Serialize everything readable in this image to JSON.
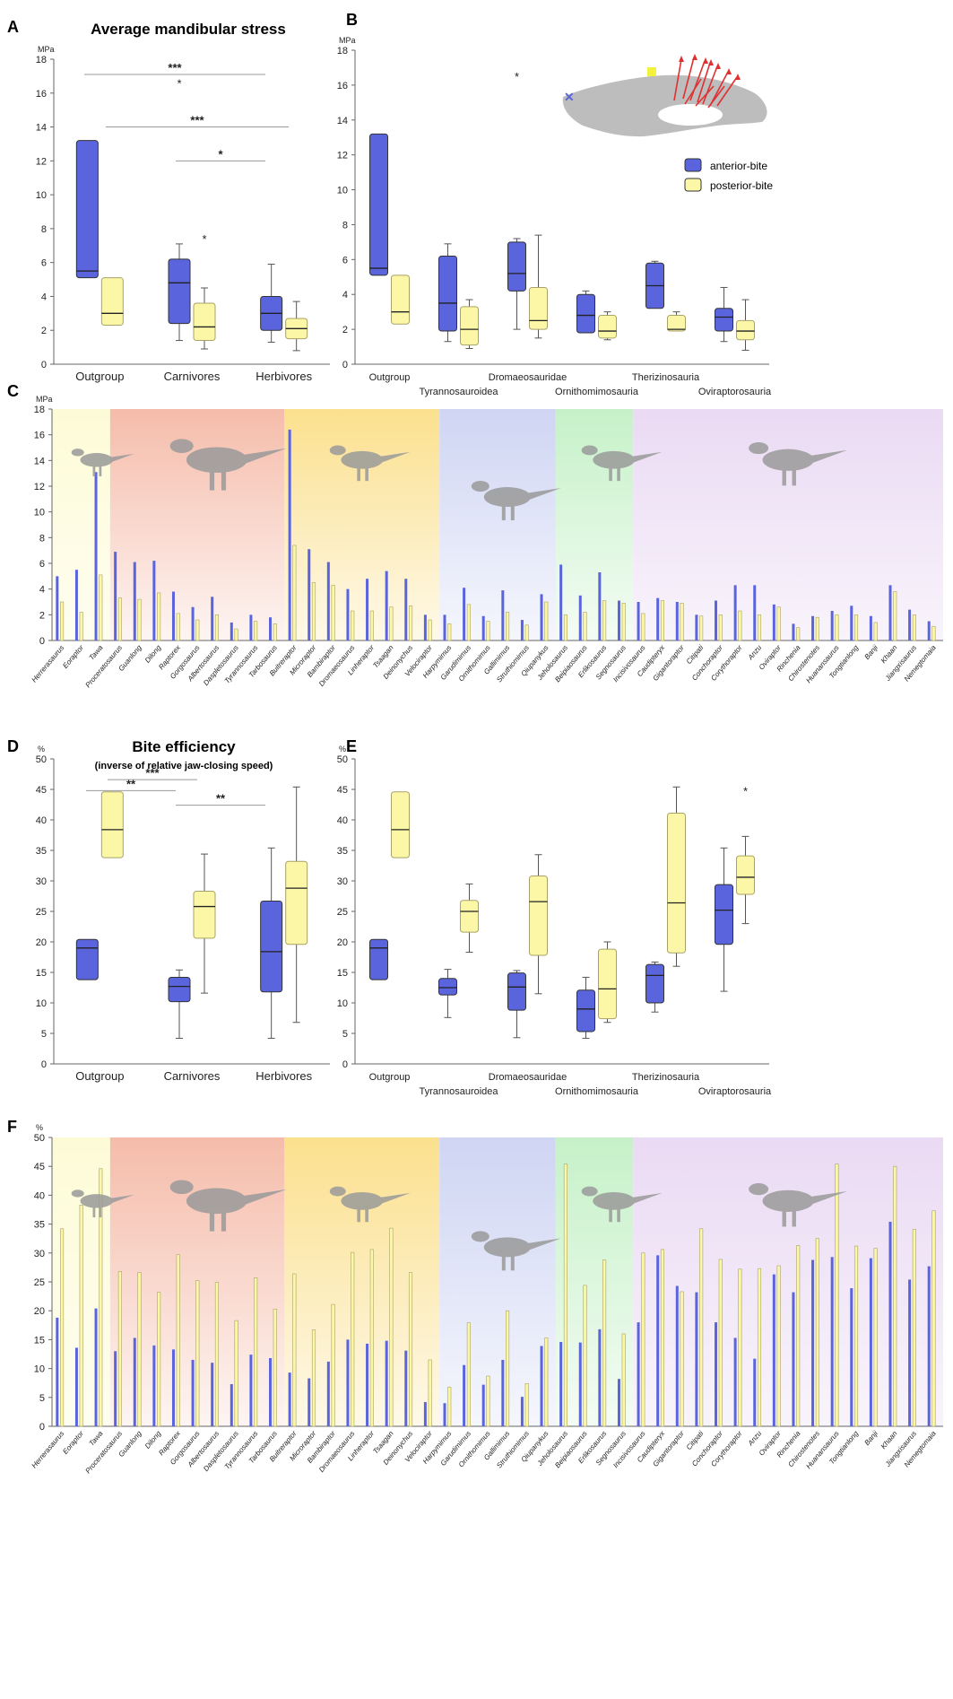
{
  "colors": {
    "anterior": "#5a64dc",
    "posterior": "#fbf7a6",
    "posterior_edge": "#a9a268",
    "bg_outgroup": "#fdfbd8",
    "bg_tyranno": "#f6c3b4",
    "bg_dromaeo": "#fbe49a",
    "bg_ornitho": "#d4d9f4",
    "bg_therizino": "#cdf2cf",
    "bg_ovirap": "#ecdcf4"
  },
  "legend": {
    "anterior": "anterior-bite",
    "posterior": "posterior-bite"
  },
  "taxa": [
    "Herrerasaurus",
    "Eoraptor",
    "Tawa",
    "Proceratosaurus",
    "Guanlong",
    "Dilong",
    "Raptorex",
    "Gorgosaurus",
    "Albertosaurus",
    "Daspletosaurus",
    "Tyrannosaurus",
    "Tarbosaurus",
    "Buitreraptor",
    "Microraptor",
    "Bambiraptor",
    "Dromaeosaurus",
    "Linheraptor",
    "Tsaagan",
    "Deinonychus",
    "Velociraptor",
    "Harpymimus",
    "Garudimimus",
    "Ornithomimus",
    "Gallimimus",
    "Struthiomimus",
    "Qiupanykus",
    "Jeholosaurus",
    "Beipiaosaurus",
    "Erlikosaurus",
    "Segnosaurus",
    "Incisivosaurus",
    "Caudipteryx",
    "Gigantoraptor",
    "Citipati",
    "Conchoraptor",
    "Corythoraptor",
    "Anzu",
    "Oviraptor",
    "Rinchenia",
    "Chirostenotes",
    "Huanansaurus",
    "Tongtianlong",
    "Banji",
    "Khaan",
    "Jiangxisaurus",
    "Nemegtomaia"
  ],
  "panels": [
    {
      "letter": "A",
      "title": "Average mandibular stress",
      "ylabel": "MPa",
      "ylim": [
        0,
        18
      ],
      "yticks": [
        0,
        2,
        4,
        6,
        8,
        10,
        12,
        14,
        16,
        18
      ],
      "groups": [
        {
          "label": "Outgroup",
          "anterior": {
            "q1": 5.1,
            "med": 5.5,
            "q3": 13.2,
            "min": 5.1,
            "max": 13.2
          },
          "posterior": {
            "q1": 2.3,
            "med": 3.0,
            "q3": 5.1,
            "min": 2.3,
            "max": 5.1
          }
        },
        {
          "label": "Carnivores",
          "anterior": {
            "q1": 2.4,
            "med": 4.8,
            "q3": 6.2,
            "min": 1.4,
            "max": 7.1,
            "outliers": [
              16.6
            ]
          },
          "posterior": {
            "q1": 1.4,
            "med": 2.2,
            "q3": 3.6,
            "min": 0.9,
            "max": 4.5,
            "outliers": [
              7.4
            ]
          }
        },
        {
          "label": "Herbivores",
          "anterior": {
            "q1": 2.0,
            "med": 3.0,
            "q3": 4.0,
            "min": 1.3,
            "max": 5.9
          },
          "posterior": {
            "q1": 1.5,
            "med": 2.1,
            "q3": 2.7,
            "min": 0.8,
            "max": 3.7
          }
        }
      ],
      "sig": [
        {
          "text": "***",
          "y": 17.1
        },
        {
          "text": "***",
          "y": 14.0
        },
        {
          "text": "*",
          "y": 12.0
        }
      ]
    },
    {
      "letter": "B",
      "ylabel": "MPa",
      "ylim": [
        0,
        18
      ],
      "yticks": [
        0,
        2,
        4,
        6,
        8,
        10,
        12,
        14,
        16,
        18
      ],
      "groups": [
        {
          "label": "Outgroup",
          "anterior": {
            "q1": 5.1,
            "med": 5.5,
            "q3": 13.2,
            "min": 5.1,
            "max": 13.2
          },
          "posterior": {
            "q1": 2.3,
            "med": 3.0,
            "q3": 5.1,
            "min": 2.3,
            "max": 5.1
          }
        },
        {
          "label": "Tyrannosauroidea",
          "anterior": {
            "q1": 1.9,
            "med": 3.5,
            "q3": 6.2,
            "min": 1.3,
            "max": 6.9
          },
          "posterior": {
            "q1": 1.1,
            "med": 2.0,
            "q3": 3.3,
            "min": 0.9,
            "max": 3.7
          }
        },
        {
          "label": "Dromaeosauridae",
          "anterior": {
            "q1": 4.2,
            "med": 5.2,
            "q3": 7.0,
            "min": 2.0,
            "max": 7.2,
            "outliers": [
              16.5
            ]
          },
          "posterior": {
            "q1": 2.0,
            "med": 2.5,
            "q3": 4.4,
            "min": 1.5,
            "max": 7.4
          }
        },
        {
          "label": "Ornithomimosauria",
          "anterior": {
            "q1": 1.8,
            "med": 2.8,
            "q3": 4.0,
            "min": 1.8,
            "max": 4.2
          },
          "posterior": {
            "q1": 1.5,
            "med": 1.9,
            "q3": 2.8,
            "min": 1.4,
            "max": 3.0
          }
        },
        {
          "label": "Therizinosauria",
          "anterior": {
            "q1": 3.2,
            "med": 4.5,
            "q3": 5.8,
            "min": 3.2,
            "max": 5.9
          },
          "posterior": {
            "q1": 1.9,
            "med": 2.0,
            "q3": 2.8,
            "min": 1.9,
            "max": 3.0
          }
        },
        {
          "label": "Oviraptorosauria",
          "anterior": {
            "q1": 1.9,
            "med": 2.7,
            "q3": 3.2,
            "min": 1.3,
            "max": 4.4
          },
          "posterior": {
            "q1": 1.4,
            "med": 1.9,
            "q3": 2.5,
            "min": 0.8,
            "max": 3.7
          }
        }
      ]
    },
    {
      "letter": "C",
      "ylabel": "MPa",
      "ylim": [
        0,
        18
      ],
      "yticks": [
        0,
        2,
        4,
        6,
        8,
        10,
        12,
        14,
        16,
        18
      ],
      "anterior": [
        5.0,
        5.5,
        13.1,
        6.9,
        6.1,
        6.2,
        3.8,
        2.6,
        3.4,
        1.4,
        2.0,
        1.8,
        16.4,
        7.1,
        6.1,
        4.0,
        4.8,
        5.4,
        4.8,
        2.0,
        2.0,
        4.1,
        1.9,
        3.9,
        1.6,
        3.6,
        5.9,
        3.5,
        5.3,
        3.1,
        3.0,
        3.3,
        3.0,
        2.0,
        3.1,
        4.3,
        4.3,
        2.8,
        1.3,
        1.9,
        2.3,
        2.7,
        1.9,
        4.3,
        2.4,
        1.5
      ],
      "posterior": [
        3.0,
        2.2,
        5.1,
        3.3,
        3.2,
        3.7,
        2.1,
        1.6,
        2.0,
        0.9,
        1.5,
        1.3,
        7.4,
        4.5,
        4.3,
        2.3,
        2.3,
        2.6,
        2.7,
        1.6,
        1.3,
        2.8,
        1.5,
        2.2,
        1.2,
        3.0,
        2.0,
        2.2,
        3.1,
        2.9,
        2.1,
        3.1,
        2.9,
        1.9,
        2.0,
        2.3,
        2.0,
        2.6,
        1.0,
        1.8,
        2.0,
        2.0,
        1.4,
        3.8,
        2.0,
        1.1
      ]
    },
    {
      "letter": "D",
      "title": "Bite efficiency",
      "subtitle": "(inverse of relative jaw-closing speed)",
      "ylabel": "%",
      "ylim": [
        0,
        50
      ],
      "yticks": [
        0,
        5,
        10,
        15,
        20,
        25,
        30,
        35,
        40,
        45,
        50
      ],
      "groups": [
        {
          "label": "Outgroup",
          "anterior": {
            "q1": 13.8,
            "med": 19.0,
            "q3": 20.4,
            "min": 13.8,
            "max": 20.4
          },
          "posterior": {
            "q1": 33.8,
            "med": 38.4,
            "q3": 44.6,
            "min": 33.8,
            "max": 44.6
          }
        },
        {
          "label": "Carnivores",
          "anterior": {
            "q1": 10.2,
            "med": 12.7,
            "q3": 14.2,
            "min": 4.2,
            "max": 15.4
          },
          "posterior": {
            "q1": 20.6,
            "med": 25.8,
            "q3": 28.3,
            "min": 11.6,
            "max": 34.4
          }
        },
        {
          "label": "Herbivores",
          "anterior": {
            "q1": 11.8,
            "med": 18.4,
            "q3": 26.7,
            "min": 4.2,
            "max": 35.4
          },
          "posterior": {
            "q1": 19.6,
            "med": 28.8,
            "q3": 33.2,
            "min": 6.8,
            "max": 45.4
          }
        }
      ],
      "sig": [
        {
          "text": "***",
          "y": 46.6
        },
        {
          "text": "**",
          "y": 44.8
        },
        {
          "text": "**",
          "y": 42.4
        }
      ]
    },
    {
      "letter": "E",
      "ylabel": "%",
      "ylim": [
        0,
        50
      ],
      "yticks": [
        0,
        5,
        10,
        15,
        20,
        25,
        30,
        35,
        40,
        45,
        50
      ],
      "groups": [
        {
          "label": "Outgroup",
          "anterior": {
            "q1": 13.8,
            "med": 19.0,
            "q3": 20.4,
            "min": 13.8,
            "max": 20.4
          },
          "posterior": {
            "q1": 33.8,
            "med": 38.4,
            "q3": 44.6,
            "min": 33.8,
            "max": 44.6
          }
        },
        {
          "label": "Tyrannosauroidea",
          "anterior": {
            "q1": 11.3,
            "med": 12.5,
            "q3": 14.0,
            "min": 7.6,
            "max": 15.5
          },
          "posterior": {
            "q1": 21.6,
            "med": 25.0,
            "q3": 26.8,
            "min": 18.3,
            "max": 29.5
          }
        },
        {
          "label": "Dromaeosauridae",
          "anterior": {
            "q1": 8.8,
            "med": 12.6,
            "q3": 14.9,
            "min": 4.3,
            "max": 15.3
          },
          "posterior": {
            "q1": 17.8,
            "med": 26.6,
            "q3": 30.8,
            "min": 11.5,
            "max": 34.3
          }
        },
        {
          "label": "Ornithomimosauria",
          "anterior": {
            "q1": 5.3,
            "med": 9.0,
            "q3": 12.1,
            "min": 4.2,
            "max": 14.2
          },
          "posterior": {
            "q1": 7.4,
            "med": 12.3,
            "q3": 18.8,
            "min": 6.8,
            "max": 20.0
          }
        },
        {
          "label": "Therizinosauria",
          "anterior": {
            "q1": 10.0,
            "med": 14.5,
            "q3": 16.3,
            "min": 8.5,
            "max": 16.7
          },
          "posterior": {
            "q1": 18.2,
            "med": 26.4,
            "q3": 41.1,
            "min": 16.0,
            "max": 45.4
          }
        },
        {
          "label": "Oviraptorosauria",
          "anterior": {
            "q1": 19.6,
            "med": 25.2,
            "q3": 29.4,
            "min": 11.9,
            "max": 35.4
          },
          "posterior": {
            "q1": 27.8,
            "med": 30.6,
            "q3": 34.1,
            "min": 23.0,
            "max": 37.3,
            "outliers": [
              44.8
            ]
          }
        }
      ]
    },
    {
      "letter": "F",
      "ylabel": "%",
      "ylim": [
        0,
        50
      ],
      "yticks": [
        0,
        5,
        10,
        15,
        20,
        25,
        30,
        35,
        40,
        45,
        50
      ],
      "anterior": [
        18.8,
        13.6,
        20.4,
        13.0,
        15.3,
        14.0,
        13.3,
        11.5,
        11.0,
        7.3,
        12.4,
        11.8,
        9.3,
        8.3,
        11.2,
        15.0,
        14.3,
        14.8,
        13.1,
        4.2,
        4.0,
        10.6,
        7.2,
        11.5,
        5.1,
        13.9,
        14.6,
        14.5,
        16.8,
        8.2,
        18.0,
        29.6,
        24.3,
        23.2,
        18.0,
        15.3,
        11.7,
        26.3,
        23.2,
        28.8,
        29.3,
        23.9,
        29.1,
        35.4,
        25.4,
        27.7
      ],
      "posterior": [
        34.2,
        38.3,
        44.6,
        26.8,
        26.6,
        23.2,
        29.7,
        25.2,
        24.9,
        18.3,
        25.7,
        20.3,
        26.4,
        16.7,
        21.1,
        30.1,
        30.6,
        34.3,
        26.6,
        11.5,
        6.8,
        17.9,
        8.7,
        20.0,
        7.4,
        15.3,
        45.4,
        24.4,
        28.8,
        16.0,
        30.0,
        30.6,
        23.3,
        34.2,
        28.9,
        27.2,
        27.3,
        27.8,
        31.3,
        32.5,
        45.4,
        31.2,
        30.8,
        45.0,
        34.1,
        37.3
      ]
    }
  ]
}
